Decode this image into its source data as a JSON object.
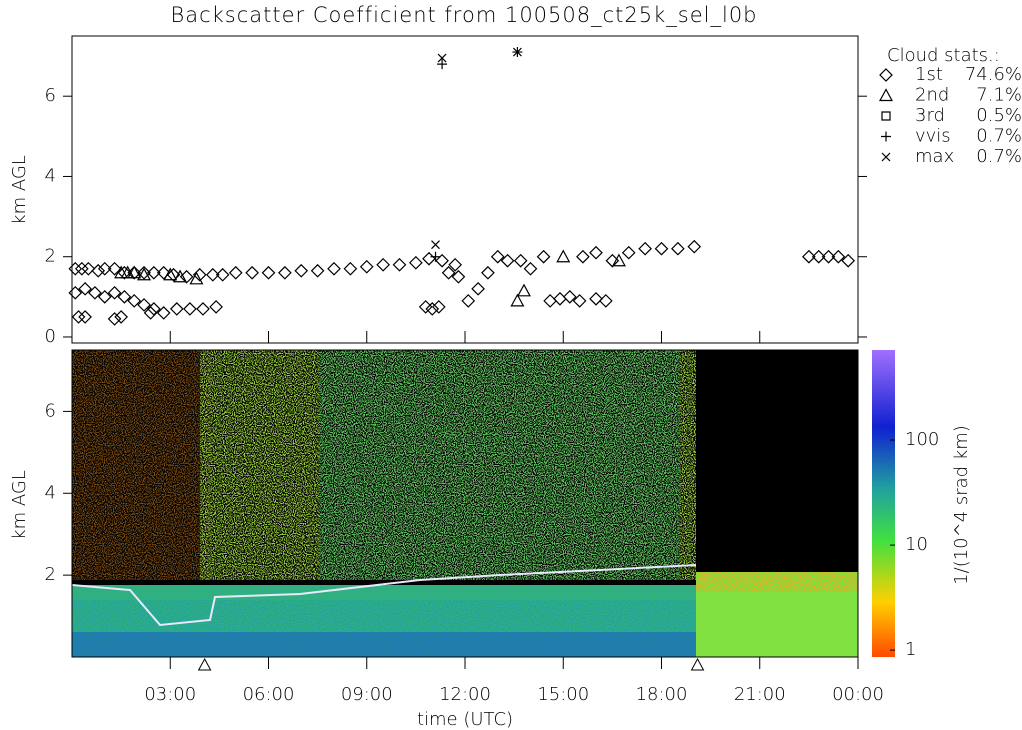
{
  "chart_data": [
    {
      "type": "scatter",
      "title": "Backscatter Coefficient from 100508_ct25k_sel_l0b",
      "ylabel": "km AGL",
      "xlim": [
        0,
        24
      ],
      "ylim": [
        -0.15,
        7.5
      ],
      "yticks": [
        0,
        2,
        4,
        6
      ],
      "legend_title": "Cloud stats.:",
      "series": [
        {
          "name": "1st",
          "share": 74.6,
          "share_label": "74.6%",
          "marker": "diamond",
          "x": [
            0.1,
            0.3,
            0.5,
            0.8,
            1.0,
            1.3,
            1.6,
            1.9,
            2.2,
            2.5,
            2.8,
            0.1,
            0.4,
            0.7,
            1.0,
            1.3,
            1.6,
            1.9,
            2.2,
            2.5,
            0.2,
            0.4,
            1.3,
            1.5,
            2.4,
            2.8,
            3.2,
            3.6,
            4.0,
            4.4,
            3.1,
            3.5,
            3.9,
            4.3,
            4.6,
            5.0,
            5.5,
            6.0,
            6.5,
            7.0,
            7.5,
            8.0,
            8.5,
            9.0,
            9.5,
            10.0,
            10.5,
            10.9,
            11.3,
            11.7,
            10.8,
            11.0,
            11.2,
            11.5,
            11.8,
            12.1,
            12.4,
            12.7,
            13.0,
            13.3,
            13.7,
            14.0,
            14.4,
            14.6,
            14.9,
            15.2,
            15.5,
            16.0,
            16.3,
            15.6,
            16.0,
            16.5,
            17.0,
            17.5,
            18.0,
            18.5,
            19.0,
            22.5,
            22.8,
            23.1,
            23.4,
            23.7
          ],
          "y": [
            1.7,
            1.7,
            1.7,
            1.65,
            1.7,
            1.7,
            1.6,
            1.6,
            1.6,
            1.6,
            1.6,
            1.1,
            1.2,
            1.1,
            1.0,
            1.1,
            1.0,
            0.9,
            0.8,
            0.7,
            0.5,
            0.5,
            0.45,
            0.5,
            0.6,
            0.6,
            0.7,
            0.7,
            0.7,
            0.75,
            1.55,
            1.5,
            1.55,
            1.55,
            1.55,
            1.6,
            1.6,
            1.6,
            1.6,
            1.65,
            1.65,
            1.7,
            1.7,
            1.75,
            1.8,
            1.8,
            1.85,
            1.95,
            1.9,
            1.8,
            0.75,
            0.7,
            0.75,
            1.6,
            1.5,
            0.9,
            1.2,
            1.6,
            2.0,
            1.9,
            1.9,
            1.7,
            2.0,
            0.9,
            0.95,
            1.0,
            0.9,
            0.95,
            0.9,
            2.0,
            2.1,
            1.9,
            2.1,
            2.2,
            2.2,
            2.2,
            2.25,
            2.0,
            2.0,
            2.0,
            2.0,
            1.9
          ]
        },
        {
          "name": "2nd",
          "share": 7.1,
          "share_label": "7.1%",
          "marker": "triangle",
          "x": [
            1.5,
            1.7,
            1.9,
            2.2,
            3.0,
            3.3,
            3.8,
            13.6,
            13.8,
            15.0,
            16.7
          ],
          "y": [
            1.6,
            1.6,
            1.6,
            1.55,
            1.55,
            1.5,
            1.45,
            0.9,
            1.15,
            2.0,
            1.9
          ]
        },
        {
          "name": "3rd",
          "share": 0.5,
          "share_label": "0.5%",
          "marker": "square",
          "x": [],
          "y": []
        },
        {
          "name": "vvis",
          "share": 0.7,
          "share_label": "0.7%",
          "marker": "plus",
          "x": [
            11.3,
            13.6,
            11.1
          ],
          "y": [
            6.8,
            7.1,
            2.0
          ]
        },
        {
          "name": "max",
          "share": 0.7,
          "share_label": "0.7%",
          "marker": "cross",
          "x": [
            11.3,
            13.6,
            11.1
          ],
          "y": [
            6.95,
            7.1,
            2.3
          ]
        }
      ]
    },
    {
      "type": "heatmap",
      "ylabel": "km AGL",
      "xlabel": "time (UTC)",
      "xlim": [
        0,
        24
      ],
      "ylim": [
        0,
        7.5
      ],
      "yticks": [
        2,
        4,
        6
      ],
      "xticks": [
        {
          "value": 3,
          "label": "03:00"
        },
        {
          "value": 6,
          "label": "06:00"
        },
        {
          "value": 9,
          "label": "09:00"
        },
        {
          "value": 12,
          "label": "12:00"
        },
        {
          "value": 15,
          "label": "15:00"
        },
        {
          "value": 18,
          "label": "18:00"
        },
        {
          "value": 21,
          "label": "21:00"
        },
        {
          "value": 24,
          "label": "00:00"
        }
      ],
      "flags_x": [
        4.05,
        19.1
      ],
      "colorbar": {
        "label": "1/(10^4 srad km)",
        "log": true,
        "lim": [
          0.86,
          720
        ],
        "ticks": [
          1,
          10,
          100
        ]
      }
    }
  ]
}
